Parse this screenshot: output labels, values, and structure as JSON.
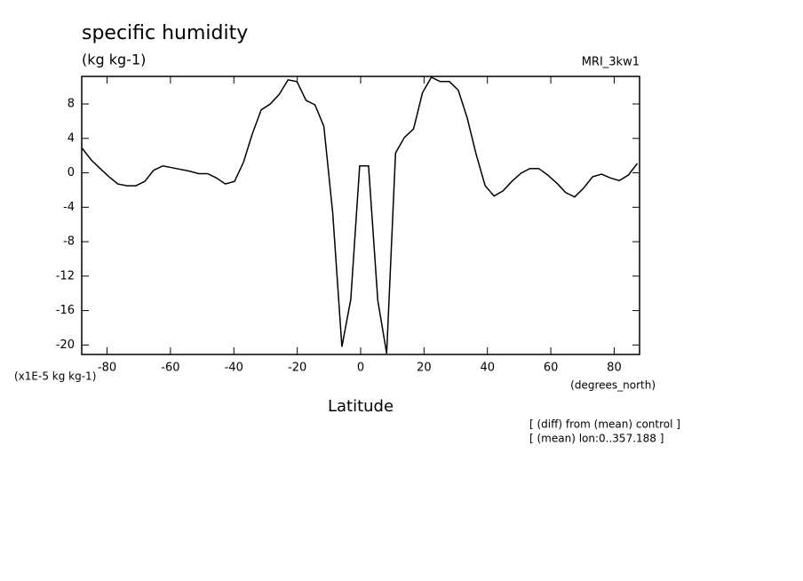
{
  "chart_data": {
    "type": "line",
    "title": "specific humidity",
    "subtitle": "(kg kg-1)",
    "model": "MRI_3kw1",
    "y_unit_label": "(x1E-5 kg kg-1)",
    "x_unit_label": "(degrees_north)",
    "xlabel": "Latitude",
    "notes": [
      "[ (diff) from (mean) control ]",
      "[ (mean) lon:0..357.188 ]"
    ],
    "x": [
      -87.9,
      -85.0,
      -82.2,
      -79.4,
      -76.6,
      -73.7,
      -70.9,
      -68.1,
      -65.3,
      -62.4,
      -59.6,
      -56.8,
      -54.0,
      -51.1,
      -48.3,
      -45.5,
      -42.7,
      -39.8,
      -37.0,
      -34.2,
      -31.4,
      -28.5,
      -25.7,
      -22.9,
      -20.1,
      -17.2,
      -14.4,
      -11.6,
      -8.8,
      -5.9,
      -3.1,
      -0.3,
      2.5,
      5.4,
      8.2,
      11.0,
      13.8,
      16.7,
      19.5,
      22.3,
      25.1,
      28.0,
      30.8,
      33.6,
      36.4,
      39.3,
      42.1,
      44.9,
      47.7,
      50.6,
      53.4,
      56.2,
      59.0,
      61.9,
      64.7,
      67.5,
      70.3,
      73.2,
      76.0,
      78.8,
      81.6,
      84.5,
      87.3
    ],
    "values": [
      2.85,
      1.5,
      0.5,
      -0.45,
      -1.3,
      -1.5,
      -1.5,
      -1.0,
      0.3,
      0.8,
      0.6,
      0.4,
      0.2,
      -0.1,
      -0.1,
      -0.6,
      -1.3,
      -1.0,
      1.2,
      4.5,
      7.3,
      8.0,
      9.1,
      10.8,
      10.6,
      8.4,
      7.9,
      5.4,
      -4.7,
      -20.2,
      -14.7,
      0.8,
      0.8,
      -14.8,
      -21.0,
      2.3,
      4.1,
      5.1,
      9.3,
      11.1,
      10.6,
      10.6,
      9.6,
      6.4,
      2.2,
      -1.5,
      -2.7,
      -2.1,
      -1.0,
      -0.05,
      0.5,
      0.5,
      -0.25,
      -1.2,
      -2.3,
      -2.8,
      -1.8,
      -0.45,
      -0.15,
      -0.6,
      -0.9,
      -0.25,
      1.1
    ],
    "color": "#000000",
    "xlim": [
      -88,
      88
    ],
    "ylim": [
      -21.1,
      11.2
    ],
    "xticks": [
      -80,
      -60,
      -40,
      -20,
      0,
      20,
      40,
      60,
      80
    ],
    "yticks": [
      -20,
      -16,
      -12,
      -8,
      -4,
      0,
      4,
      8
    ]
  }
}
